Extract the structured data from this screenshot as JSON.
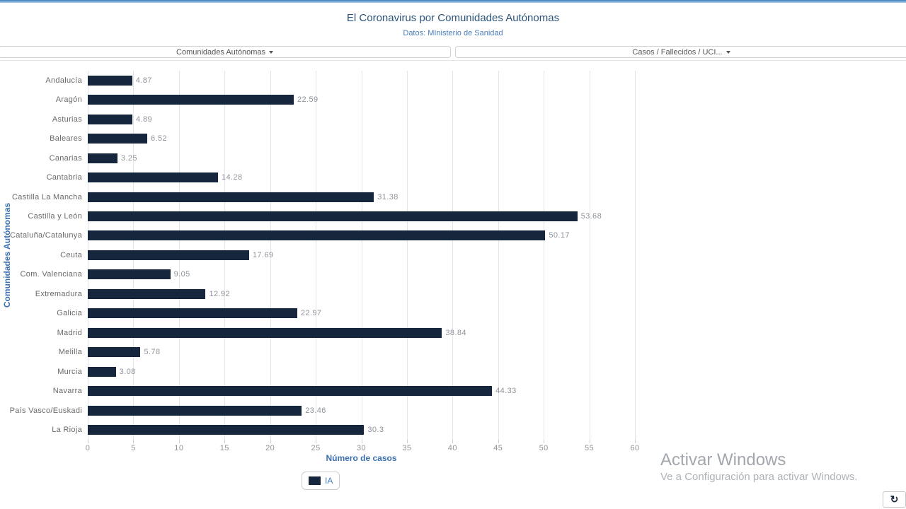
{
  "header": {
    "title": "El Coronavirus por Comunidades Autónomas",
    "subtitle": "Datos: MInisterio de Sanidad"
  },
  "filters": {
    "left_dropdown": "Comunidades Autónomas",
    "right_dropdown": "Casos / Fallecidos / UCI..."
  },
  "chart_data": {
    "type": "bar",
    "orientation": "horizontal",
    "title": "El Coronavirus por Comunidades Autónomas",
    "categories": [
      "Andalucía",
      "Aragón",
      "Asturias",
      "Baleares",
      "Canarias",
      "Cantabria",
      "Castilla La Mancha",
      "Castilla y León",
      "Cataluña/Catalunya",
      "Ceuta",
      "Com. Valenciana",
      "Extremadura",
      "Galicia",
      "Madrid",
      "Melilla",
      "Murcia",
      "Navarra",
      "País Vasco/Euskadi",
      "La Rioja"
    ],
    "values": [
      4.87,
      22.59,
      4.89,
      6.52,
      3.25,
      14.28,
      31.38,
      53.68,
      50.17,
      17.69,
      9.05,
      12.92,
      22.97,
      38.84,
      5.78,
      3.08,
      44.33,
      23.46,
      30.3
    ],
    "series_name": "IA",
    "xlabel": "Número de casos",
    "ylabel": "Comunidades Autónomas",
    "xlim": [
      0,
      60
    ],
    "xticks": [
      0,
      5,
      10,
      15,
      20,
      25,
      30,
      35,
      40,
      45,
      50,
      55,
      60
    ],
    "grid": true,
    "legend_position": "bottom",
    "bar_color": "#16263c"
  },
  "legend": {
    "label": "IA"
  },
  "watermark": {
    "line1": "Activar Windows",
    "line2": "Ve a Configuración para activar Windows."
  },
  "icons": {
    "refresh": "↻"
  },
  "colors": {
    "accent_blue": "#4a7eba",
    "axis_title_blue": "#3a6fb0",
    "bar_navy": "#16263c",
    "topbar_blue": "#3d7fbe"
  }
}
